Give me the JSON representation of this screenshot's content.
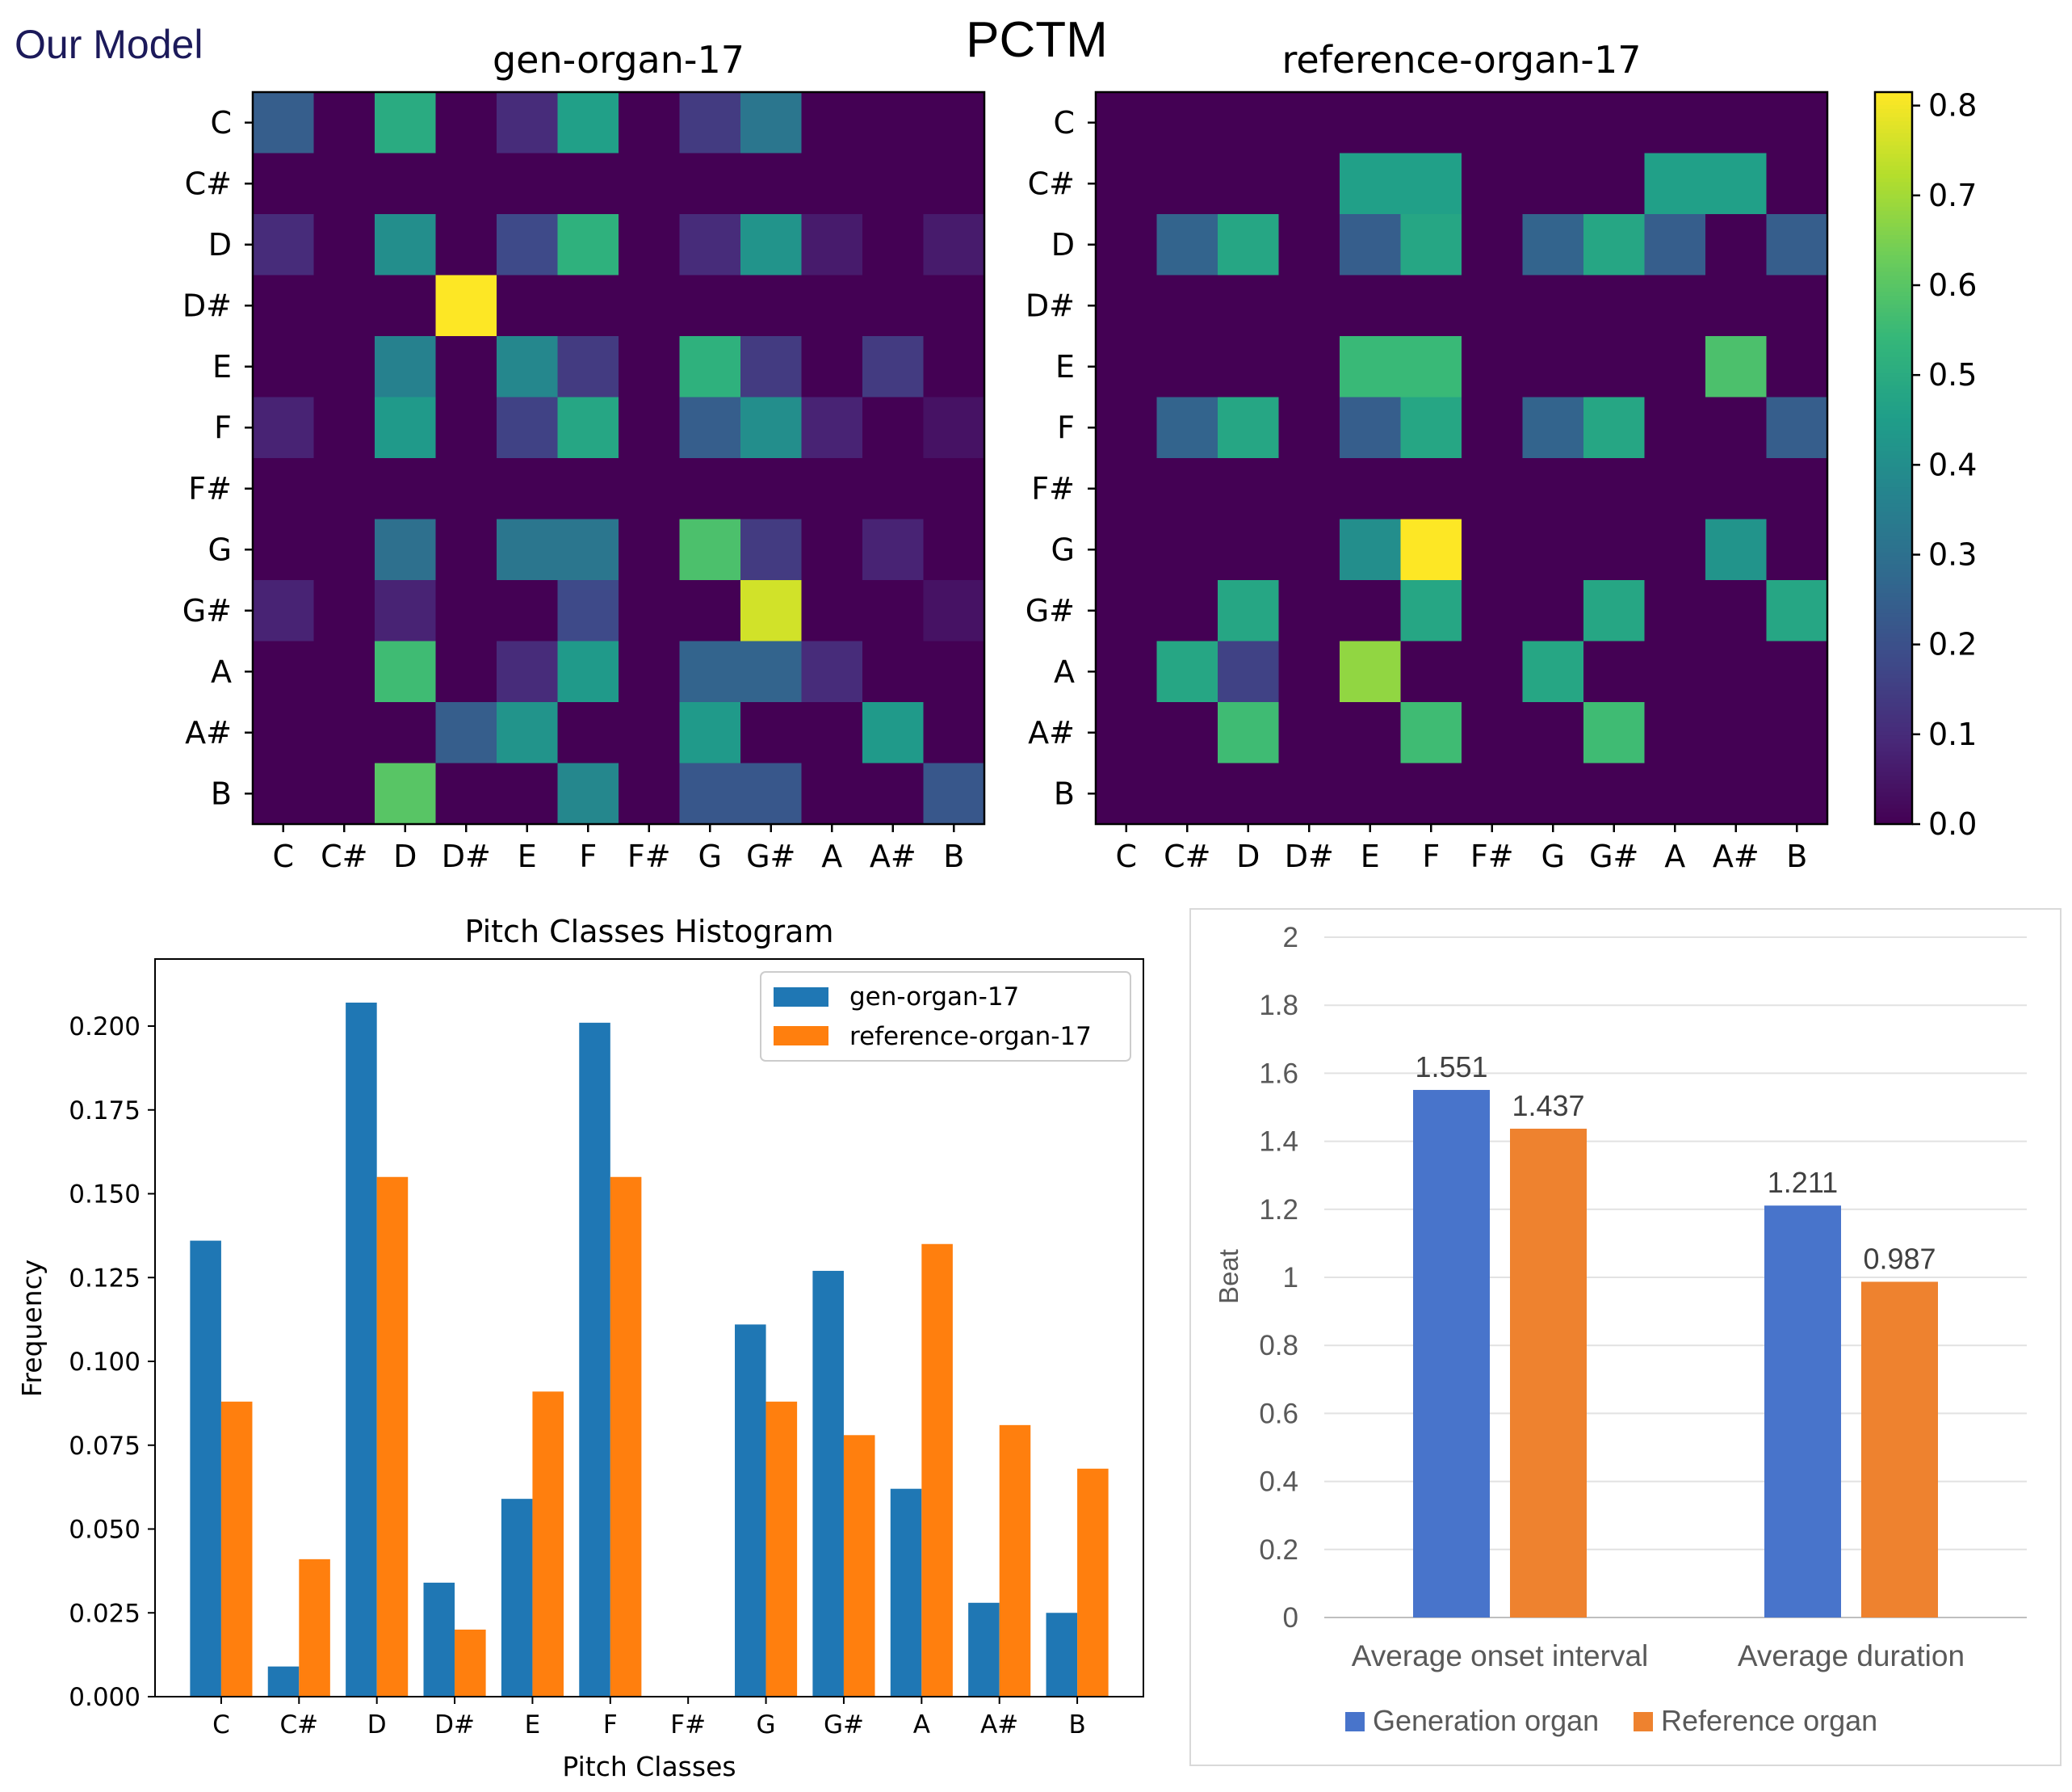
{
  "figure": {
    "label": "Our Model",
    "heading": "PCTM",
    "label_color": "#1c1a5a"
  },
  "colorbar": {
    "ticks": [
      "0.0",
      "0.1",
      "0.2",
      "0.3",
      "0.4",
      "0.5",
      "0.6",
      "0.7",
      "0.8"
    ],
    "range": [
      0,
      0.815
    ]
  },
  "chart_data": [
    {
      "type": "heatmap",
      "name": "gen-matrix",
      "title": "gen-organ-17",
      "x_labels": [
        "C",
        "C#",
        "D",
        "D#",
        "E",
        "F",
        "F#",
        "G",
        "G#",
        "A",
        "A#",
        "B"
      ],
      "y_labels": [
        "C",
        "C#",
        "D",
        "D#",
        "E",
        "F",
        "F#",
        "G",
        "G#",
        "A",
        "A#",
        "B"
      ],
      "colormap": "viridis",
      "vmin": 0,
      "vmax": 0.815,
      "values": [
        [
          0.24,
          0,
          0.5,
          0,
          0.1,
          0.46,
          0,
          0.14,
          0.32,
          0,
          0,
          0
        ],
        [
          0,
          0,
          0,
          0,
          0,
          0,
          0,
          0,
          0,
          0,
          0,
          0
        ],
        [
          0.1,
          0,
          0.4,
          0,
          0.18,
          0.52,
          0,
          0.1,
          0.42,
          0.06,
          0,
          0.06
        ],
        [
          0,
          0,
          0,
          0.815,
          0,
          0,
          0,
          0,
          0,
          0,
          0,
          0
        ],
        [
          0,
          0,
          0.36,
          0,
          0.38,
          0.14,
          0,
          0.52,
          0.14,
          0,
          0.14,
          0
        ],
        [
          0.08,
          0,
          0.44,
          0,
          0.16,
          0.48,
          0,
          0.24,
          0.4,
          0.08,
          0,
          0.04
        ],
        [
          0,
          0,
          0,
          0,
          0,
          0,
          0,
          0,
          0,
          0,
          0,
          0
        ],
        [
          0,
          0,
          0.3,
          0,
          0.32,
          0.32,
          0,
          0.58,
          0.14,
          0,
          0.08,
          0
        ],
        [
          0.08,
          0,
          0.08,
          0,
          0,
          0.18,
          0,
          0,
          0.76,
          0,
          0,
          0.04
        ],
        [
          0,
          0,
          0.56,
          0,
          0.1,
          0.44,
          0,
          0.26,
          0.26,
          0.1,
          0,
          0
        ],
        [
          0,
          0,
          0,
          0.24,
          0.42,
          0,
          0,
          0.44,
          0,
          0,
          0.44,
          0
        ],
        [
          0,
          0,
          0.6,
          0,
          0,
          0.38,
          0,
          0.22,
          0.22,
          0,
          0,
          0.22
        ]
      ]
    },
    {
      "type": "heatmap",
      "name": "ref-matrix",
      "title": "reference-organ-17",
      "x_labels": [
        "C",
        "C#",
        "D",
        "D#",
        "E",
        "F",
        "F#",
        "G",
        "G#",
        "A",
        "A#",
        "B"
      ],
      "y_labels": [
        "C",
        "C#",
        "D",
        "D#",
        "E",
        "F",
        "F#",
        "G",
        "G#",
        "A",
        "A#",
        "B"
      ],
      "colormap": "viridis",
      "vmin": 0,
      "vmax": 0.815,
      "values": [
        [
          0,
          0,
          0,
          0,
          0,
          0,
          0,
          0,
          0,
          0,
          0,
          0
        ],
        [
          0,
          0,
          0,
          0,
          0.46,
          0.46,
          0,
          0,
          0,
          0.46,
          0.46,
          0
        ],
        [
          0,
          0.26,
          0.48,
          0,
          0.24,
          0.48,
          0,
          0.26,
          0.48,
          0.24,
          0,
          0.24
        ],
        [
          0,
          0,
          0,
          0,
          0,
          0,
          0,
          0,
          0,
          0,
          0,
          0
        ],
        [
          0,
          0,
          0,
          0,
          0.55,
          0.55,
          0,
          0,
          0,
          0,
          0.58,
          0
        ],
        [
          0,
          0.26,
          0.48,
          0,
          0.24,
          0.48,
          0,
          0.26,
          0.48,
          0,
          0,
          0.24
        ],
        [
          0,
          0,
          0,
          0,
          0,
          0,
          0,
          0,
          0,
          0,
          0,
          0
        ],
        [
          0,
          0,
          0,
          0,
          0.4,
          0.815,
          0,
          0,
          0,
          0,
          0.42,
          0
        ],
        [
          0,
          0,
          0.48,
          0,
          0,
          0.48,
          0,
          0,
          0.48,
          0,
          0,
          0.48
        ],
        [
          0,
          0.48,
          0.16,
          0,
          0.68,
          0,
          0,
          0.48,
          0,
          0,
          0,
          0
        ],
        [
          0,
          0,
          0.56,
          0,
          0,
          0.56,
          0,
          0,
          0.56,
          0,
          0,
          0
        ],
        [
          0,
          0,
          0,
          0,
          0,
          0,
          0,
          0,
          0,
          0,
          0,
          0
        ]
      ]
    },
    {
      "type": "bar",
      "name": "histogram",
      "title": "Pitch Classes Histogram",
      "xlabel": "Pitch Classes",
      "ylabel": "Frequency",
      "categories": [
        "C",
        "C#",
        "D",
        "D#",
        "E",
        "F",
        "F#",
        "G",
        "G#",
        "A",
        "A#",
        "B"
      ],
      "ylim": [
        0,
        0.22
      ],
      "yticks": [
        "0.000",
        "0.025",
        "0.050",
        "0.075",
        "0.100",
        "0.125",
        "0.150",
        "0.175",
        "0.200"
      ],
      "series": [
        {
          "name": "gen-organ-17",
          "color": "#1f77b4",
          "values": [
            0.136,
            0.009,
            0.207,
            0.034,
            0.059,
            0.201,
            0,
            0.111,
            0.127,
            0.062,
            0.028,
            0.025
          ]
        },
        {
          "name": "reference-organ-17",
          "color": "#ff7f0e",
          "values": [
            0.088,
            0.041,
            0.155,
            0.02,
            0.091,
            0.155,
            0,
            0.088,
            0.078,
            0.135,
            0.081,
            0.068
          ]
        }
      ],
      "legend": "top-right"
    },
    {
      "type": "bar",
      "name": "beat-chart",
      "title": "",
      "xlabel": "",
      "ylabel": "Beat",
      "categories": [
        "Average onset interval",
        "Average duration"
      ],
      "ylim": [
        0,
        2
      ],
      "yticks": [
        "0",
        "0.2",
        "0.4",
        "0.6",
        "0.8",
        "1",
        "1.2",
        "1.4",
        "1.6",
        "1.8",
        "2"
      ],
      "series": [
        {
          "name": "Generation organ",
          "color": "#4874cb",
          "values": [
            1.551,
            1.211
          ],
          "labels": [
            "1.551",
            "1.211"
          ]
        },
        {
          "name": "Reference organ",
          "color": "#ee822f",
          "values": [
            1.437,
            0.987
          ],
          "labels": [
            "1.437",
            "0.987"
          ]
        }
      ],
      "legend": "bottom"
    }
  ]
}
